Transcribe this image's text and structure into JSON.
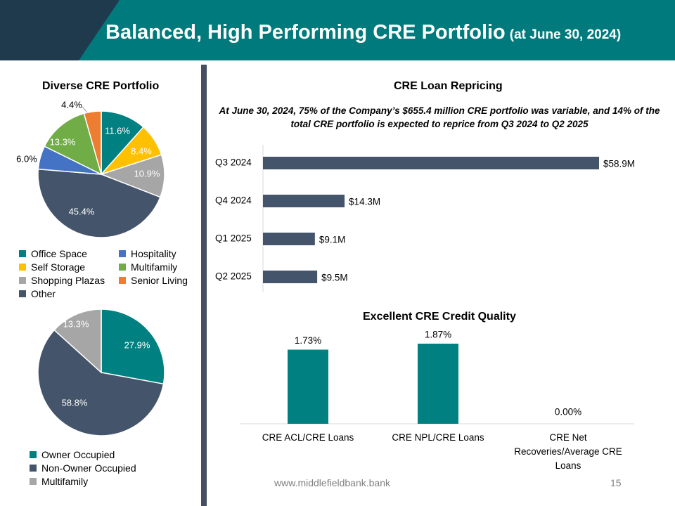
{
  "header": {
    "title": "Balanced, High Performing CRE Portfolio",
    "subtitle": "(at June 30, 2024)",
    "colors": {
      "teal": "#007a7c",
      "navy": "#1f3a4d"
    }
  },
  "left_titles": {
    "portfolio": "Diverse CRE Portfolio"
  },
  "right_titles": {
    "repricing": "CRE Loan Repricing",
    "credit": "Excellent CRE Credit Quality",
    "note": "At June 30, 2024, 75% of the Company’s $655.4 million CRE portfolio was variable, and 14% of the total CRE portfolio is expected to reprice from Q3 2024 to Q2 2025"
  },
  "chart_data": [
    {
      "type": "pie",
      "title": "Diverse CRE Portfolio",
      "slices": [
        {
          "name": "Office Space",
          "value": 11.6,
          "label": "11.6%",
          "color": "#008080"
        },
        {
          "name": "Self Storage",
          "value": 8.4,
          "label": "8.4%",
          "color": "#ffc000"
        },
        {
          "name": "Shopping Plazas",
          "value": 10.9,
          "label": "10.9%",
          "color": "#a6a6a6"
        },
        {
          "name": "Other",
          "value": 45.4,
          "label": "45.4%",
          "color": "#44546a"
        },
        {
          "name": "Hospitality",
          "value": 6.0,
          "label": "6.0%",
          "color": "#4472c4"
        },
        {
          "name": "Multifamily",
          "value": 13.3,
          "label": "13.3%",
          "color": "#70ad47"
        },
        {
          "name": "Senior Living",
          "value": 4.4,
          "label": "4.4%",
          "color": "#ed7d31"
        }
      ],
      "legend": [
        {
          "name": "Office Space",
          "color": "#008080"
        },
        {
          "name": "Hospitality",
          "color": "#4472c4"
        },
        {
          "name": "Self Storage",
          "color": "#ffc000"
        },
        {
          "name": "Multifamily",
          "color": "#70ad47"
        },
        {
          "name": "Shopping Plazas",
          "color": "#a6a6a6"
        },
        {
          "name": "Senior Living",
          "color": "#ed7d31"
        },
        {
          "name": "Other",
          "color": "#44546a"
        }
      ]
    },
    {
      "type": "pie",
      "slices": [
        {
          "name": "Owner Occupied",
          "value": 27.9,
          "label": "27.9%",
          "color": "#008080"
        },
        {
          "name": "Non-Owner Occupied",
          "value": 58.8,
          "label": "58.8%",
          "color": "#44546a"
        },
        {
          "name": "Multifamily",
          "value": 13.3,
          "label": "13.3%",
          "color": "#a6a6a6"
        }
      ],
      "legend": [
        {
          "name": "Owner Occupied",
          "color": "#008080"
        },
        {
          "name": "Non-Owner Occupied",
          "color": "#44546a"
        },
        {
          "name": "Multifamily",
          "color": "#a6a6a6"
        }
      ]
    },
    {
      "type": "bar",
      "orientation": "horizontal",
      "title": "CRE Loan Repricing",
      "categories": [
        "Q3 2024",
        "Q4 2024",
        "Q1 2025",
        "Q2 2025"
      ],
      "values": [
        58.9,
        14.3,
        9.1,
        9.5
      ],
      "value_labels": [
        "$58.9M",
        "$14.3M",
        "$9.1M",
        "$9.5M"
      ],
      "unit": "$M",
      "xlim": [
        0,
        58.9
      ],
      "color": "#44546a"
    },
    {
      "type": "bar",
      "title": "Excellent CRE Credit Quality",
      "categories": [
        "CRE ACL/CRE Loans",
        "CRE NPL/CRE Loans",
        "CRE Net Recoveries/Average CRE Loans"
      ],
      "values": [
        1.73,
        1.87,
        0.0
      ],
      "value_labels": [
        "1.73%",
        "1.87%",
        "0.00%"
      ],
      "unit": "%",
      "ylim": [
        0,
        1.87
      ],
      "color": "#008080"
    }
  ],
  "footer": {
    "url": "www.middlefieldbank.bank",
    "page": "15"
  }
}
